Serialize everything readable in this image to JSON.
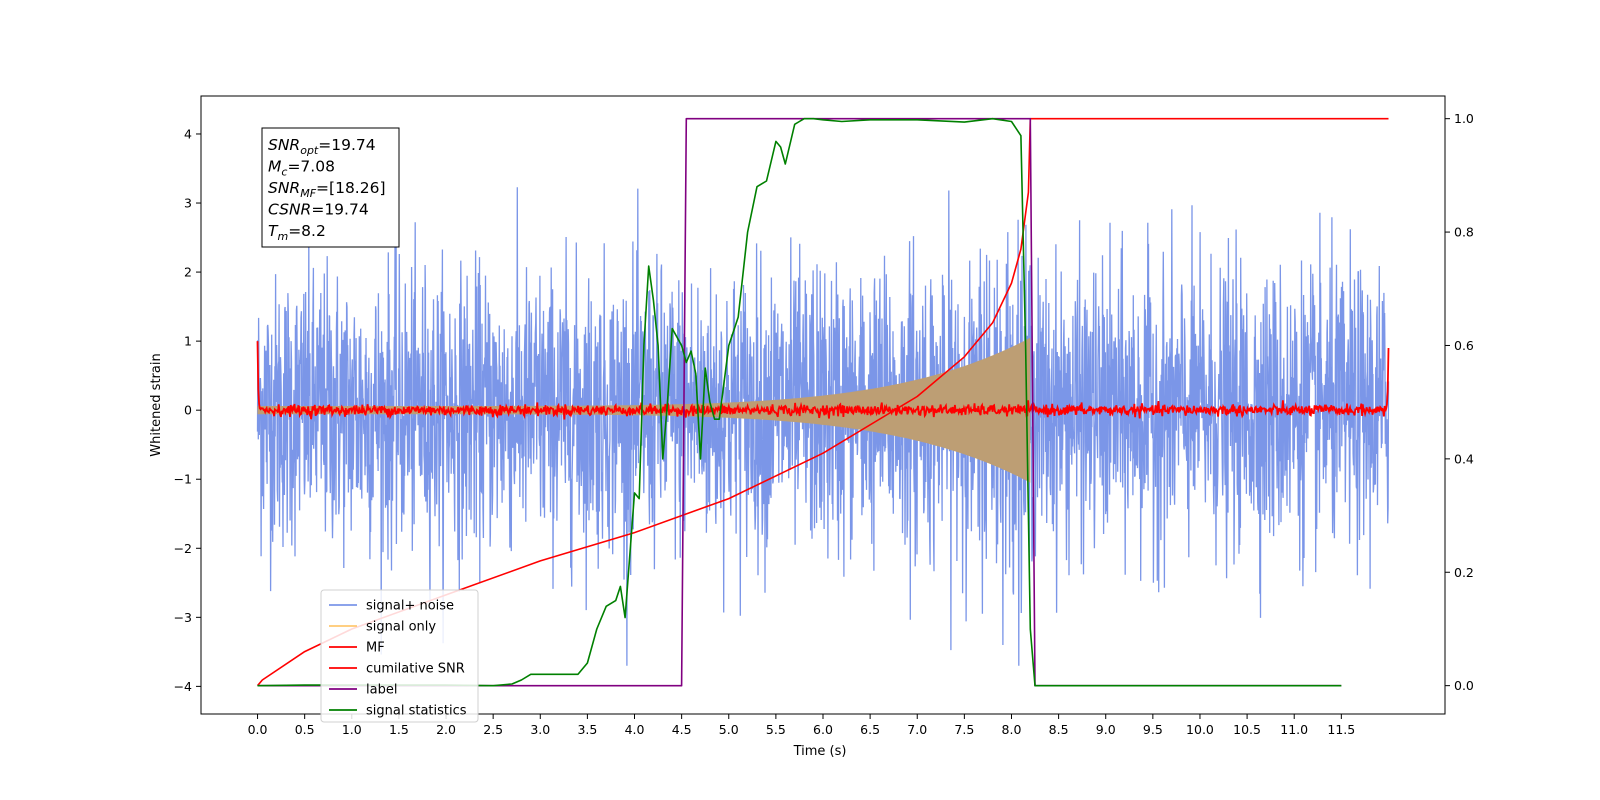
{
  "chart_data": {
    "type": "line",
    "title": "",
    "xlabel": "Time (s)",
    "ylabel": "Whitened strain",
    "y2label": "",
    "xlim": [
      -0.6,
      12.6
    ],
    "ylim": [
      -4.4,
      4.55
    ],
    "y2lim": [
      -0.05,
      1.04
    ],
    "xticks": [
      "0.0",
      "0.5",
      "1.0",
      "1.5",
      "2.0",
      "2.5",
      "3.0",
      "3.5",
      "4.0",
      "4.5",
      "5.0",
      "5.5",
      "6.0",
      "6.5",
      "7.0",
      "7.5",
      "8.0",
      "8.5",
      "9.0",
      "9.5",
      "10.0",
      "10.5",
      "11.0",
      "11.5"
    ],
    "yticks": [
      "−4",
      "−3",
      "−2",
      "−1",
      "0",
      "1",
      "2",
      "3",
      "4"
    ],
    "y2ticks": [
      "0.0",
      "0.2",
      "0.4",
      "0.6",
      "0.8",
      "1.0"
    ],
    "grid": false,
    "legend_position": "lower-left",
    "annotation": {
      "lines": [
        {
          "base": "SNR",
          "sub": "opt",
          "value": "=19.74"
        },
        {
          "base": "M",
          "sub": "c",
          "value": "=7.08"
        },
        {
          "base": "SNR",
          "sub": "MF",
          "value": "=[18.26]"
        },
        {
          "base": "CSNR",
          "sub": "",
          "value": "=19.74"
        },
        {
          "base": "T",
          "sub": "m",
          "value": "=8.2"
        }
      ]
    },
    "series": [
      {
        "name": "signal+ noise",
        "color": "#7b96e8",
        "axis": "left",
        "kind": "noise",
        "x_range": [
          0,
          12
        ],
        "amplitude": 1.0,
        "peak": 3.4,
        "trough": -3.7
      },
      {
        "name": "signal only",
        "color": "#ffc870",
        "axis": "left",
        "kind": "chirp",
        "x_range": [
          0,
          8.2
        ],
        "envelope_start": 0.06,
        "envelope_end": 1.05,
        "fill_color": "#bd9e74"
      },
      {
        "name": "MF",
        "color": "#ff0000",
        "axis": "left",
        "kind": "mf",
        "x_range": [
          0,
          12
        ],
        "start": 1.0,
        "level": 0.0,
        "end": 0.9
      },
      {
        "name": "cumilative SNR",
        "color": "#ff0000",
        "axis": "right",
        "x": [
          0.0,
          0.05,
          0.5,
          1.0,
          2.0,
          3.0,
          4.0,
          5.0,
          6.0,
          7.0,
          7.5,
          7.8,
          8.0,
          8.1,
          8.18,
          8.2,
          12.0
        ],
        "y": [
          0.0,
          0.01,
          0.06,
          0.1,
          0.16,
          0.22,
          0.27,
          0.33,
          0.41,
          0.51,
          0.58,
          0.64,
          0.71,
          0.77,
          0.87,
          1.0,
          1.0
        ]
      },
      {
        "name": "label",
        "color": "#800080",
        "axis": "right",
        "x": [
          0.0,
          4.5,
          4.55,
          8.2,
          8.25,
          11.5
        ],
        "y": [
          0.0,
          0.0,
          1.0,
          1.0,
          0.0,
          0.0
        ]
      },
      {
        "name": "signal statistics",
        "color": "#008000",
        "axis": "right",
        "x": [
          0.0,
          0.5,
          1.0,
          1.5,
          2.0,
          2.5,
          2.7,
          2.8,
          2.9,
          3.0,
          3.2,
          3.4,
          3.5,
          3.6,
          3.7,
          3.8,
          3.85,
          3.9,
          4.0,
          4.05,
          4.1,
          4.15,
          4.2,
          4.25,
          4.3,
          4.35,
          4.4,
          4.5,
          4.55,
          4.6,
          4.65,
          4.7,
          4.75,
          4.8,
          4.85,
          4.9,
          5.0,
          5.1,
          5.2,
          5.3,
          5.4,
          5.5,
          5.55,
          5.6,
          5.7,
          5.75,
          5.8,
          5.9,
          6.0,
          6.2,
          6.5,
          7.0,
          7.5,
          7.8,
          8.0,
          8.1,
          8.15,
          8.2,
          8.25,
          8.3,
          9.0,
          10.0,
          11.0,
          11.5
        ],
        "y": [
          0.0,
          0.001,
          0.001,
          0.001,
          0.001,
          0.0,
          0.003,
          0.01,
          0.02,
          0.02,
          0.02,
          0.02,
          0.04,
          0.1,
          0.14,
          0.15,
          0.175,
          0.12,
          0.34,
          0.33,
          0.6,
          0.74,
          0.68,
          0.6,
          0.4,
          0.5,
          0.63,
          0.6,
          0.57,
          0.59,
          0.55,
          0.4,
          0.56,
          0.5,
          0.47,
          0.47,
          0.6,
          0.65,
          0.8,
          0.88,
          0.89,
          0.96,
          0.95,
          0.92,
          0.99,
          0.995,
          1.0,
          1.0,
          0.998,
          0.995,
          0.998,
          0.998,
          0.994,
          1.0,
          0.995,
          0.97,
          0.6,
          0.1,
          0.0,
          0.0,
          0.0,
          0.0,
          0.0,
          0.0
        ]
      }
    ]
  }
}
